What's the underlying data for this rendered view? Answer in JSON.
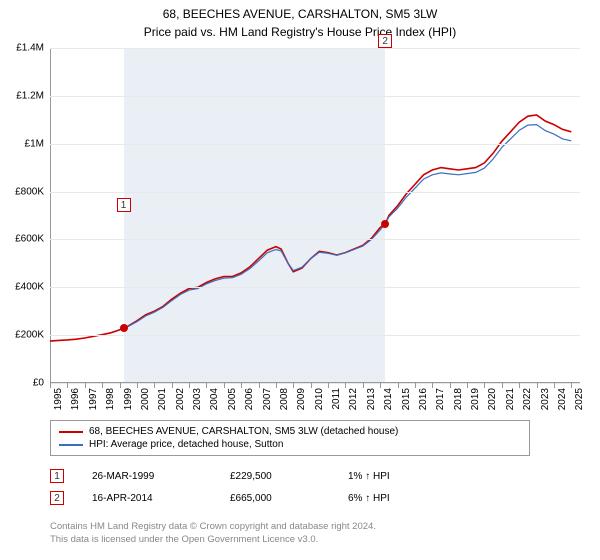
{
  "title": "68, BEECHES AVENUE, CARSHALTON, SM5 3LW",
  "subtitle": "Price paid vs. HM Land Registry's House Price Index (HPI)",
  "title_fontsize": 12,
  "chart": {
    "type": "line",
    "background_color": "#ffffff",
    "shade_color": "rgba(200,215,230,0.4)",
    "grid_color": "#e8e8e8",
    "axis_color": "#999999",
    "label_fontsize": 10,
    "xlim": [
      1995,
      2025.5
    ],
    "ylim": [
      0,
      1400000
    ],
    "yticks": [
      {
        "v": 0,
        "label": "£0"
      },
      {
        "v": 200000,
        "label": "£200K"
      },
      {
        "v": 400000,
        "label": "£400K"
      },
      {
        "v": 600000,
        "label": "£600K"
      },
      {
        "v": 800000,
        "label": "£800K"
      },
      {
        "v": 1000000,
        "label": "£1M"
      },
      {
        "v": 1200000,
        "label": "£1.2M"
      },
      {
        "v": 1400000,
        "label": "£1.4M"
      }
    ],
    "xticks": [
      {
        "v": 1995,
        "label": "1995"
      },
      {
        "v": 1996,
        "label": "1996"
      },
      {
        "v": 1997,
        "label": "1997"
      },
      {
        "v": 1998,
        "label": "1998"
      },
      {
        "v": 1999,
        "label": "1999"
      },
      {
        "v": 2000,
        "label": "2000"
      },
      {
        "v": 2001,
        "label": "2001"
      },
      {
        "v": 2002,
        "label": "2002"
      },
      {
        "v": 2003,
        "label": "2003"
      },
      {
        "v": 2004,
        "label": "2004"
      },
      {
        "v": 2005,
        "label": "2005"
      },
      {
        "v": 2006,
        "label": "2006"
      },
      {
        "v": 2007,
        "label": "2007"
      },
      {
        "v": 2008,
        "label": "2008"
      },
      {
        "v": 2009,
        "label": "2009"
      },
      {
        "v": 2010,
        "label": "2010"
      },
      {
        "v": 2011,
        "label": "2011"
      },
      {
        "v": 2012,
        "label": "2012"
      },
      {
        "v": 2013,
        "label": "2013"
      },
      {
        "v": 2014,
        "label": "2014"
      },
      {
        "v": 2015,
        "label": "2015"
      },
      {
        "v": 2016,
        "label": "2016"
      },
      {
        "v": 2017,
        "label": "2017"
      },
      {
        "v": 2018,
        "label": "2018"
      },
      {
        "v": 2019,
        "label": "2019"
      },
      {
        "v": 2020,
        "label": "2020"
      },
      {
        "v": 2021,
        "label": "2021"
      },
      {
        "v": 2022,
        "label": "2022"
      },
      {
        "v": 2023,
        "label": "2023"
      },
      {
        "v": 2024,
        "label": "2024"
      },
      {
        "v": 2025,
        "label": "2025"
      }
    ],
    "shade_ranges": [
      {
        "x0": 1999.23,
        "x1": 2014.29
      }
    ],
    "series": [
      {
        "id": "price-paid",
        "label": "68, BEECHES AVENUE, CARSHALTON, SM5 3LW (detached house)",
        "color": "#cc0000",
        "line_width": 1.6,
        "points": [
          [
            1995.0,
            175000
          ],
          [
            1995.5,
            178000
          ],
          [
            1996.0,
            180000
          ],
          [
            1996.5,
            183000
          ],
          [
            1997.0,
            188000
          ],
          [
            1997.5,
            195000
          ],
          [
            1998.0,
            202000
          ],
          [
            1998.5,
            210000
          ],
          [
            1999.0,
            222000
          ],
          [
            1999.23,
            229500
          ],
          [
            1999.5,
            238000
          ],
          [
            2000.0,
            260000
          ],
          [
            2000.5,
            285000
          ],
          [
            2001.0,
            300000
          ],
          [
            2001.5,
            320000
          ],
          [
            2002.0,
            350000
          ],
          [
            2002.5,
            375000
          ],
          [
            2003.0,
            395000
          ],
          [
            2003.5,
            400000
          ],
          [
            2004.0,
            420000
          ],
          [
            2004.5,
            435000
          ],
          [
            2005.0,
            445000
          ],
          [
            2005.5,
            445000
          ],
          [
            2006.0,
            460000
          ],
          [
            2006.5,
            485000
          ],
          [
            2007.0,
            520000
          ],
          [
            2007.5,
            555000
          ],
          [
            2008.0,
            570000
          ],
          [
            2008.3,
            560000
          ],
          [
            2008.7,
            500000
          ],
          [
            2009.0,
            465000
          ],
          [
            2009.5,
            480000
          ],
          [
            2010.0,
            520000
          ],
          [
            2010.5,
            550000
          ],
          [
            2011.0,
            545000
          ],
          [
            2011.5,
            535000
          ],
          [
            2012.0,
            545000
          ],
          [
            2012.5,
            560000
          ],
          [
            2013.0,
            575000
          ],
          [
            2013.5,
            605000
          ],
          [
            2014.0,
            650000
          ],
          [
            2014.29,
            665000
          ],
          [
            2014.5,
            700000
          ],
          [
            2015.0,
            740000
          ],
          [
            2015.5,
            790000
          ],
          [
            2016.0,
            830000
          ],
          [
            2016.5,
            870000
          ],
          [
            2017.0,
            890000
          ],
          [
            2017.5,
            900000
          ],
          [
            2018.0,
            895000
          ],
          [
            2018.5,
            890000
          ],
          [
            2019.0,
            895000
          ],
          [
            2019.5,
            900000
          ],
          [
            2020.0,
            920000
          ],
          [
            2020.5,
            960000
          ],
          [
            2021.0,
            1010000
          ],
          [
            2021.5,
            1050000
          ],
          [
            2022.0,
            1090000
          ],
          [
            2022.5,
            1115000
          ],
          [
            2023.0,
            1120000
          ],
          [
            2023.5,
            1095000
          ],
          [
            2024.0,
            1080000
          ],
          [
            2024.5,
            1060000
          ],
          [
            2025.0,
            1050000
          ]
        ]
      },
      {
        "id": "hpi",
        "label": "HPI: Average price, detached house, Sutton",
        "color": "#3a6fbf",
        "line_width": 1.2,
        "points": [
          [
            1999.23,
            229500
          ],
          [
            1999.5,
            236000
          ],
          [
            2000.0,
            256000
          ],
          [
            2000.5,
            280000
          ],
          [
            2001.0,
            296000
          ],
          [
            2001.5,
            316000
          ],
          [
            2002.0,
            344000
          ],
          [
            2002.5,
            370000
          ],
          [
            2003.0,
            388000
          ],
          [
            2003.5,
            395000
          ],
          [
            2004.0,
            414000
          ],
          [
            2004.5,
            428000
          ],
          [
            2005.0,
            438000
          ],
          [
            2005.5,
            440000
          ],
          [
            2006.0,
            454000
          ],
          [
            2006.5,
            478000
          ],
          [
            2007.0,
            510000
          ],
          [
            2007.5,
            544000
          ],
          [
            2008.0,
            558000
          ],
          [
            2008.3,
            552000
          ],
          [
            2008.7,
            500000
          ],
          [
            2009.0,
            470000
          ],
          [
            2009.5,
            484000
          ],
          [
            2010.0,
            520000
          ],
          [
            2010.5,
            546000
          ],
          [
            2011.0,
            542000
          ],
          [
            2011.5,
            534000
          ],
          [
            2012.0,
            544000
          ],
          [
            2012.5,
            558000
          ],
          [
            2013.0,
            572000
          ],
          [
            2013.5,
            600000
          ],
          [
            2014.0,
            640000
          ],
          [
            2014.29,
            665000
          ],
          [
            2014.5,
            694000
          ],
          [
            2015.0,
            730000
          ],
          [
            2015.5,
            776000
          ],
          [
            2016.0,
            814000
          ],
          [
            2016.5,
            852000
          ],
          [
            2017.0,
            870000
          ],
          [
            2017.5,
            878000
          ],
          [
            2018.0,
            874000
          ],
          [
            2018.5,
            870000
          ],
          [
            2019.0,
            875000
          ],
          [
            2019.5,
            880000
          ],
          [
            2020.0,
            898000
          ],
          [
            2020.5,
            936000
          ],
          [
            2021.0,
            984000
          ],
          [
            2021.5,
            1020000
          ],
          [
            2022.0,
            1056000
          ],
          [
            2022.5,
            1078000
          ],
          [
            2023.0,
            1080000
          ],
          [
            2023.5,
            1055000
          ],
          [
            2024.0,
            1040000
          ],
          [
            2024.5,
            1020000
          ],
          [
            2025.0,
            1012000
          ]
        ]
      }
    ],
    "markers": [
      {
        "n": "1",
        "x": 1999.23,
        "y": 229500,
        "dot": true,
        "label_offset_y": -130
      },
      {
        "n": "2",
        "x": 2014.29,
        "y": 665000,
        "dot": true,
        "label_offset_y": -190
      }
    ]
  },
  "legend": {
    "items": [
      {
        "color": "#cc0000",
        "label": "68, BEECHES AVENUE, CARSHALTON, SM5 3LW (detached house)"
      },
      {
        "color": "#3a6fbf",
        "label": "HPI: Average price, detached house, Sutton"
      }
    ]
  },
  "sales": [
    {
      "n": "1",
      "date": "26-MAR-1999",
      "price": "£229,500",
      "delta": "1% ↑ HPI"
    },
    {
      "n": "2",
      "date": "16-APR-2014",
      "price": "£665,000",
      "delta": "6% ↑ HPI"
    }
  ],
  "attribution": {
    "line1": "Contains HM Land Registry data © Crown copyright and database right 2024.",
    "line2": "This data is licensed under the Open Government Licence v3.0."
  }
}
